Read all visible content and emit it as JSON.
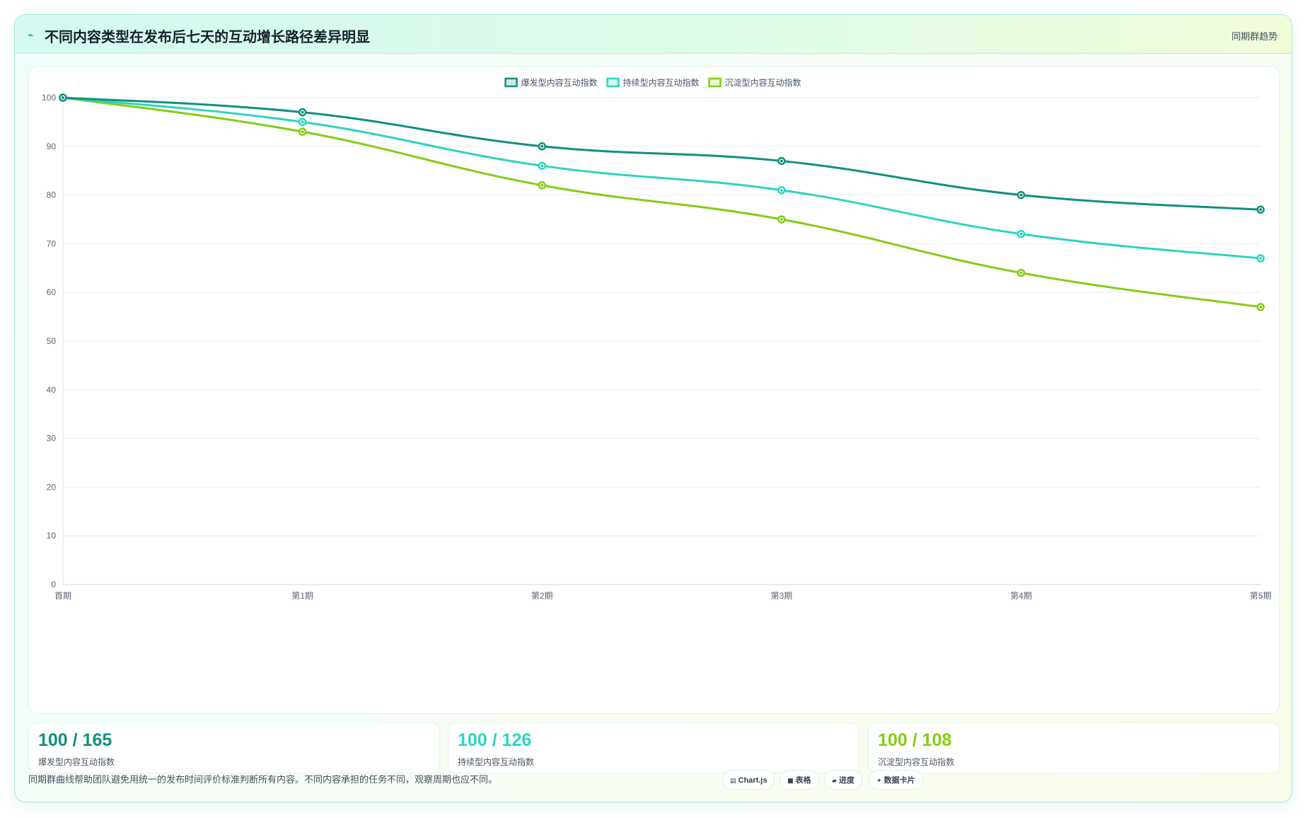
{
  "header": {
    "icon": "trend-line-icon",
    "title": "不同内容类型在发布后七天的互动增长路径差异明显",
    "tag": "同期群趋势"
  },
  "chart_data": {
    "type": "line",
    "title": "",
    "xlabel": "",
    "ylabel": "",
    "categories": [
      "首期",
      "第1期",
      "第2期",
      "第3期",
      "第4期",
      "第5期"
    ],
    "ylim": [
      0,
      100
    ],
    "yticks": [
      0,
      10,
      20,
      30,
      40,
      50,
      60,
      70,
      80,
      90,
      100
    ],
    "grid": true,
    "legend_position": "top-center",
    "series": [
      {
        "name": "爆发型内容互动指数",
        "color": "#138f7f",
        "values": [
          100,
          97,
          90,
          87,
          80,
          77
        ]
      },
      {
        "name": "持续型内容互动指数",
        "color": "#2dd4bf",
        "values": [
          100,
          95,
          86,
          81,
          72,
          67
        ]
      },
      {
        "name": "沉淀型内容互动指数",
        "color": "#84cc16",
        "values": [
          100,
          93,
          82,
          75,
          64,
          57
        ]
      }
    ]
  },
  "stats": [
    {
      "value": "100 / 165",
      "label": "爆发型内容互动指数",
      "color": "#138f7f"
    },
    {
      "value": "100 / 126",
      "label": "持续型内容互动指数",
      "color": "#2dd4bf"
    },
    {
      "value": "100 / 108",
      "label": "沉淀型内容互动指数",
      "color": "#84cc16"
    }
  ],
  "footer": {
    "note": "同期群曲线帮助团队避免用统一的发布时间评价标准判断所有内容。不同内容承担的任务不同，观察周期也应不同。",
    "badges": [
      {
        "icon": "▤",
        "icon_name": "chart-icon",
        "label": "Chart.js"
      },
      {
        "icon": "■",
        "icon_name": "table-icon",
        "label": "表格"
      },
      {
        "icon": "▰",
        "icon_name": "progress-icon",
        "label": "进度"
      },
      {
        "icon": "✦",
        "icon_name": "sparkle-icon",
        "label": "数据卡片"
      }
    ]
  }
}
